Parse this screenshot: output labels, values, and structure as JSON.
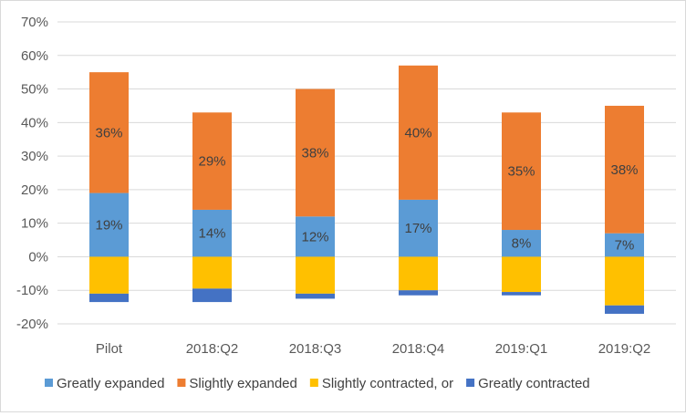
{
  "chart_data": {
    "type": "bar",
    "stacked": true,
    "categories": [
      "Pilot",
      "2018:Q2",
      "2018:Q3",
      "2018:Q4",
      "2019:Q1",
      "2019:Q2"
    ],
    "series": [
      {
        "name": "Greatly expanded",
        "color": "#5b9bd5",
        "values": [
          19,
          14,
          12,
          17,
          8,
          7
        ],
        "labels": [
          "19%",
          "14%",
          "12%",
          "17%",
          "8%",
          "7%"
        ]
      },
      {
        "name": "Slightly expanded",
        "color": "#ed7d31",
        "values": [
          36,
          29,
          38,
          40,
          35,
          38
        ],
        "labels": [
          "36%",
          "29%",
          "38%",
          "40%",
          "35%",
          "38%"
        ]
      },
      {
        "name": "Slightly contracted, or",
        "color": "#ffc000",
        "values": [
          -11,
          -9.5,
          -11,
          -10,
          -10.5,
          -14.5
        ]
      },
      {
        "name": "Greatly contracted",
        "color": "#4472c4",
        "values": [
          -2.5,
          -4,
          -1.5,
          -1.5,
          -1,
          -2.5
        ]
      }
    ],
    "ylim": [
      -20,
      70
    ],
    "yticks": [
      "-20%",
      "-10%",
      "0%",
      "10%",
      "20%",
      "30%",
      "40%",
      "50%",
      "60%",
      "70%"
    ],
    "grid": true,
    "legend": "bottom"
  }
}
